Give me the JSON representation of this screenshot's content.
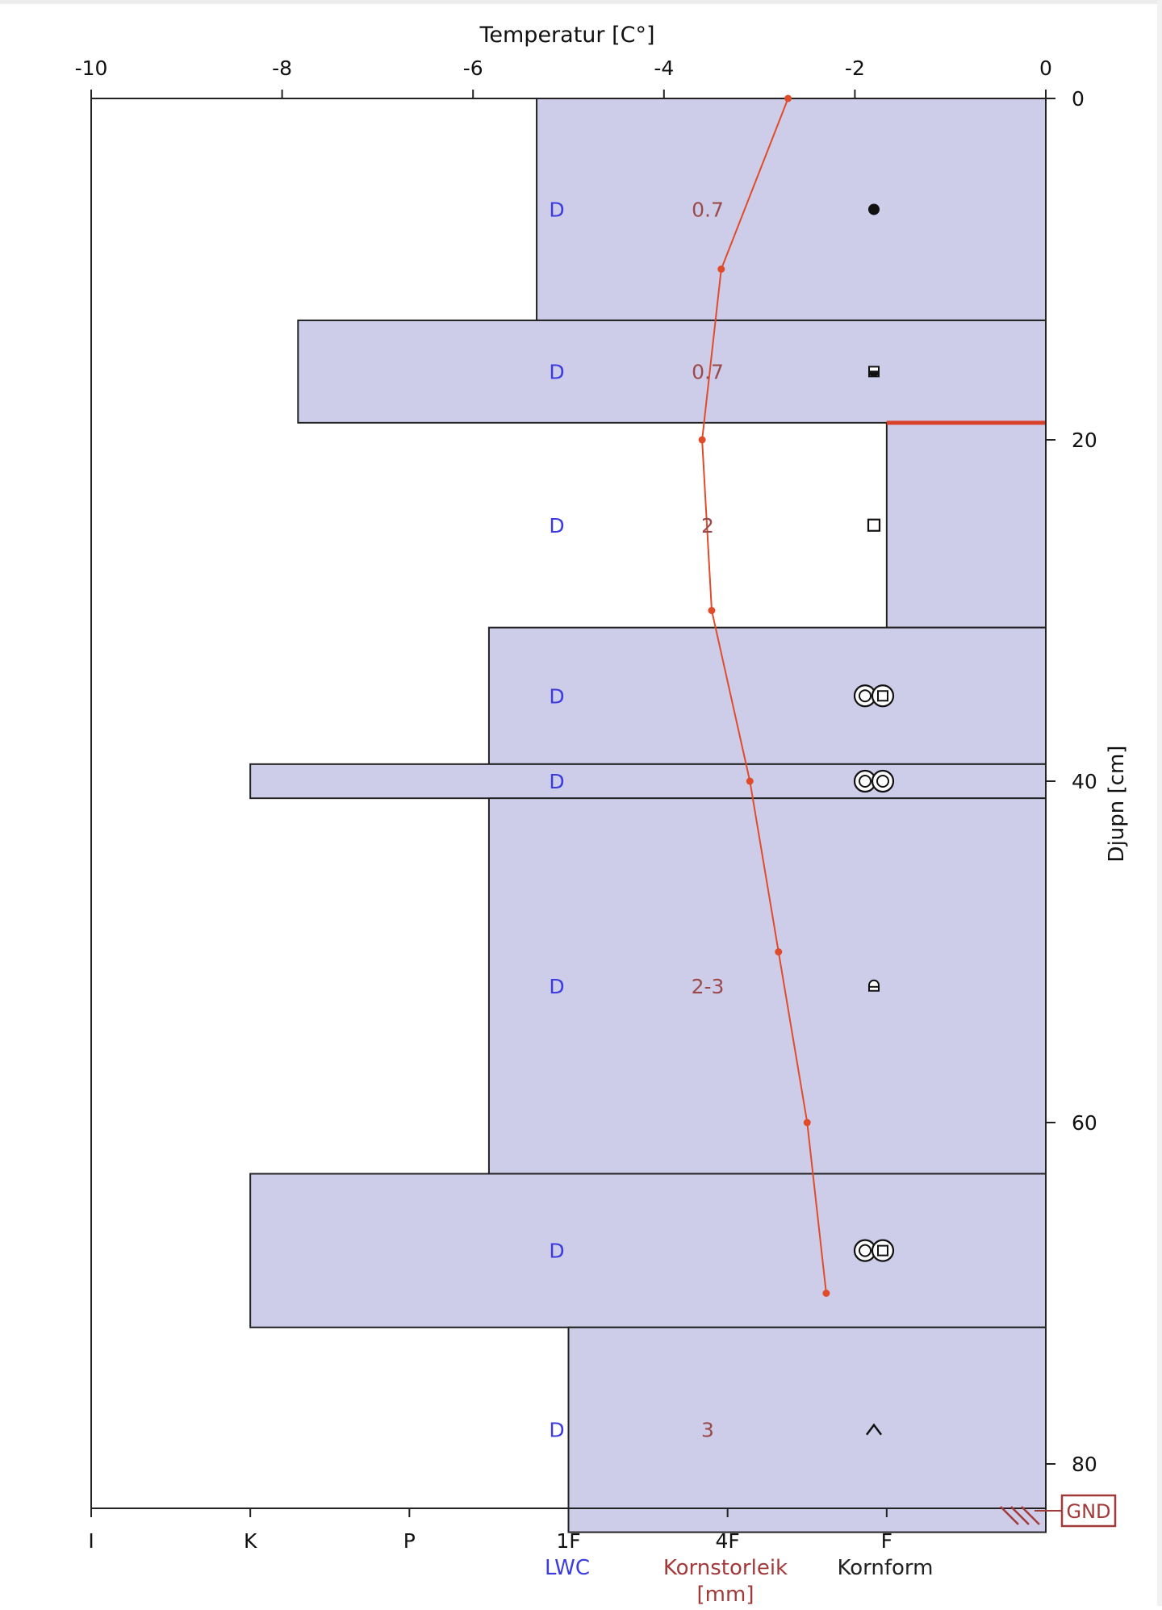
{
  "chart_data": {
    "type": "snow-profile",
    "title": "",
    "temperature_axis": {
      "label": "Temperatur [C°]",
      "range": [
        -10,
        0
      ],
      "ticks": [
        -10,
        -8,
        -6,
        -4,
        -2,
        0
      ],
      "tick_labels": [
        "-10",
        "-8",
        "-6",
        "-4",
        "-2",
        "0"
      ]
    },
    "depth_axis": {
      "label": "Djupn [cm]",
      "range": [
        0,
        84
      ],
      "ticks": [
        0,
        20,
        40,
        60,
        80
      ],
      "tick_labels": [
        "0",
        "20",
        "40",
        "60",
        "80"
      ]
    },
    "hardness_axis": {
      "levels": [
        "I",
        "K",
        "P",
        "1F",
        "4F",
        "F"
      ],
      "column_labels": [
        {
          "text": "LWC",
          "at": "1F",
          "color": "#3b3bdf"
        },
        {
          "text": "Kornstorleik [mm]",
          "line1": "Kornstorleik",
          "line2": "[mm]",
          "at": "4F",
          "color": "#a33a3a"
        },
        {
          "text": "Kornform",
          "at": "F",
          "color": "#222222"
        }
      ]
    },
    "layers": [
      {
        "top": 0,
        "bottom": 13,
        "hardness_index": 2.8,
        "lwc": "D",
        "grain_size": "0.7",
        "grain_form": "dot-filled",
        "label_depth": 6.5
      },
      {
        "top": 13,
        "bottom": 19,
        "hardness_index": 1.3,
        "lwc": "D",
        "grain_size": "0.7",
        "grain_form": "half-filled-square",
        "label_depth": 16
      },
      {
        "top": 19,
        "bottom": 31,
        "hardness_index": 5.0,
        "lwc": "D",
        "grain_size": "2",
        "grain_form": "square",
        "label_depth": 25
      },
      {
        "top": 31,
        "bottom": 39,
        "hardness_index": 2.5,
        "lwc": "D",
        "grain_size": "",
        "grain_form": "circle-square",
        "label_depth": 35
      },
      {
        "top": 39,
        "bottom": 41,
        "hardness_index": 1.0,
        "lwc": "D",
        "grain_size": "",
        "grain_form": "double-circle",
        "label_depth": 40
      },
      {
        "top": 41,
        "bottom": 63,
        "hardness_index": 2.5,
        "lwc": "D",
        "grain_size": "2-3",
        "grain_form": "arch-square",
        "label_depth": 52
      },
      {
        "top": 63,
        "bottom": 72,
        "hardness_index": 1.0,
        "lwc": "D",
        "grain_size": "",
        "grain_form": "circle-square",
        "label_depth": 67.5
      },
      {
        "top": 72,
        "bottom": 84,
        "hardness_index": 3.0,
        "lwc": "D",
        "grain_size": "3",
        "grain_form": "caret",
        "label_depth": 78
      }
    ],
    "temperature_profile": [
      {
        "depth": 0,
        "temp": -2.7
      },
      {
        "depth": 10,
        "temp": -3.4
      },
      {
        "depth": 20,
        "temp": -3.6
      },
      {
        "depth": 30,
        "temp": -3.5
      },
      {
        "depth": 40,
        "temp": -3.1
      },
      {
        "depth": 50,
        "temp": -2.8
      },
      {
        "depth": 60,
        "temp": -2.5
      },
      {
        "depth": 70,
        "temp": -2.3
      }
    ],
    "weak_layer": {
      "depth": 19,
      "from_index": 5.0,
      "to_index": 6.0
    },
    "ground": {
      "label": "GND",
      "depth": 84
    },
    "colors": {
      "layer_fill": "#cdcdea",
      "layer_stroke": "#222222",
      "temperature_line": "#e04b2a",
      "weak_layer": "#d9412a",
      "lwc_text": "#3b3bdf",
      "grain_size_text": "#9a4a4a",
      "ground_box": "#a33a3a"
    },
    "grid": false,
    "legend": "none"
  }
}
